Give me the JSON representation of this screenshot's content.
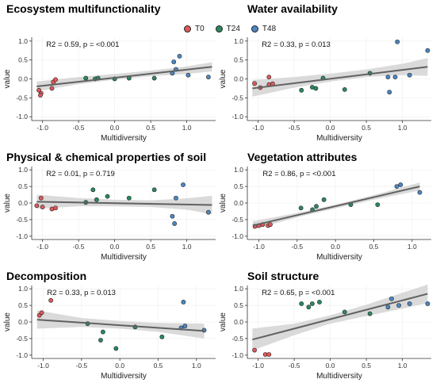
{
  "legend": {
    "items": [
      {
        "label": "T0",
        "color": "#E0595A"
      },
      {
        "label": "T24",
        "color": "#2A8A5E"
      },
      {
        "label": "T48",
        "color": "#4C87C4"
      }
    ]
  },
  "chart_data": [
    {
      "type": "scatter",
      "title": "Ecosystem multifunctionality",
      "xlabel": "Multidiversity",
      "ylabel": "value",
      "stat": "R2 = 0.59, p = <0.001",
      "xlim": [
        -1.15,
        1.4
      ],
      "ylim": [
        -1.1,
        1.1
      ],
      "xticks": [
        -1.0,
        -0.5,
        0.0,
        0.5,
        1.0
      ],
      "yticks": [
        -1.0,
        -0.5,
        0.0,
        0.5,
        1.0
      ],
      "fit": {
        "x": [
          -1.08,
          1.35
        ],
        "y": [
          -0.2,
          0.32
        ]
      },
      "band": {
        "x": [
          -1.08,
          -0.5,
          0.0,
          0.5,
          1.0,
          1.35
        ],
        "upper": [
          -0.07,
          0.05,
          0.13,
          0.22,
          0.33,
          0.44
        ],
        "lower": [
          -0.33,
          -0.14,
          -0.02,
          0.07,
          0.13,
          0.2
        ]
      },
      "points": [
        {
          "x": -1.05,
          "y": -0.3,
          "g": "T0"
        },
        {
          "x": -1.02,
          "y": -0.38,
          "g": "T0"
        },
        {
          "x": -1.03,
          "y": -0.43,
          "g": "T0"
        },
        {
          "x": -0.85,
          "y": -0.08,
          "g": "T0"
        },
        {
          "x": -0.82,
          "y": -0.02,
          "g": "T0"
        },
        {
          "x": -0.87,
          "y": -0.25,
          "g": "T0"
        },
        {
          "x": -0.4,
          "y": 0.02,
          "g": "T24"
        },
        {
          "x": -0.27,
          "y": 0.0,
          "g": "T24"
        },
        {
          "x": -0.23,
          "y": 0.02,
          "g": "T24"
        },
        {
          "x": 0.0,
          "y": 0.0,
          "g": "T24"
        },
        {
          "x": 0.2,
          "y": 0.02,
          "g": "T24"
        },
        {
          "x": 0.55,
          "y": 0.02,
          "g": "T24"
        },
        {
          "x": 0.8,
          "y": 0.15,
          "g": "T48"
        },
        {
          "x": 0.82,
          "y": 0.45,
          "g": "T48"
        },
        {
          "x": 0.9,
          "y": 0.6,
          "g": "T48"
        },
        {
          "x": 1.02,
          "y": 0.1,
          "g": "T48"
        },
        {
          "x": 1.3,
          "y": 0.05,
          "g": "T48"
        },
        {
          "x": 0.85,
          "y": 0.25,
          "g": "T48"
        }
      ]
    },
    {
      "type": "scatter",
      "title": "Water availability",
      "xlabel": "Multidiversity",
      "ylabel": "value",
      "stat": "R2 = 0.33, p = 0.013",
      "xlim": [
        -1.15,
        1.4
      ],
      "ylim": [
        -1.1,
        1.1
      ],
      "xticks": [
        -1.0,
        -0.5,
        0.0,
        0.5,
        1.0
      ],
      "yticks": [
        -1.0,
        -0.5,
        0.0,
        0.5,
        1.0
      ],
      "fit": {
        "x": [
          -1.08,
          1.35
        ],
        "y": [
          -0.25,
          0.32
        ]
      },
      "band": {
        "x": [
          -1.08,
          -0.5,
          0.0,
          0.5,
          1.0,
          1.35
        ],
        "upper": [
          -0.03,
          0.05,
          0.14,
          0.25,
          0.4,
          0.55
        ],
        "lower": [
          -0.47,
          -0.23,
          -0.07,
          0.05,
          0.1,
          0.08
        ]
      },
      "points": [
        {
          "x": -1.05,
          "y": -0.12,
          "g": "T0"
        },
        {
          "x": -0.97,
          "y": -0.23,
          "g": "T0"
        },
        {
          "x": -0.85,
          "y": 0.05,
          "g": "T0"
        },
        {
          "x": -0.85,
          "y": -0.15,
          "g": "T0"
        },
        {
          "x": -0.8,
          "y": -0.13,
          "g": "T0"
        },
        {
          "x": -0.4,
          "y": -0.3,
          "g": "T24"
        },
        {
          "x": -0.25,
          "y": -0.22,
          "g": "T24"
        },
        {
          "x": -0.2,
          "y": -0.25,
          "g": "T24"
        },
        {
          "x": -0.1,
          "y": 0.02,
          "g": "T24"
        },
        {
          "x": 0.2,
          "y": -0.28,
          "g": "T24"
        },
        {
          "x": 0.55,
          "y": 0.15,
          "g": "T24"
        },
        {
          "x": 0.8,
          "y": 0.05,
          "g": "T48"
        },
        {
          "x": 0.82,
          "y": -0.35,
          "g": "T48"
        },
        {
          "x": 0.93,
          "y": 0.98,
          "g": "T48"
        },
        {
          "x": 0.9,
          "y": 0.05,
          "g": "T48"
        },
        {
          "x": 1.1,
          "y": 0.1,
          "g": "T48"
        },
        {
          "x": 1.35,
          "y": 0.75,
          "g": "T48"
        }
      ]
    },
    {
      "type": "scatter",
      "title": "Physical & chemical properties of soil",
      "xlabel": "Multidiversity",
      "ylabel": "value",
      "stat": "R2 = 0.01, p = 0.719",
      "xlim": [
        -1.15,
        1.4
      ],
      "ylim": [
        -1.1,
        1.1
      ],
      "xticks": [
        -1.0,
        -0.5,
        0.0,
        0.5,
        1.0
      ],
      "yticks": [
        -1.0,
        -0.5,
        0.0,
        0.5,
        1.0
      ],
      "fit": {
        "x": [
          -1.08,
          1.35
        ],
        "y": [
          0.04,
          -0.06
        ]
      },
      "band": {
        "x": [
          -1.08,
          -0.5,
          0.0,
          0.5,
          1.0,
          1.35
        ],
        "upper": [
          0.25,
          0.15,
          0.1,
          0.08,
          0.14,
          0.22
        ],
        "lower": [
          -0.17,
          -0.1,
          -0.1,
          -0.12,
          -0.2,
          -0.34
        ]
      },
      "points": [
        {
          "x": -1.08,
          "y": -0.08,
          "g": "T0"
        },
        {
          "x": -1.02,
          "y": 0.15,
          "g": "T0"
        },
        {
          "x": -1.0,
          "y": -0.12,
          "g": "T0"
        },
        {
          "x": -0.87,
          "y": -0.18,
          "g": "T0"
        },
        {
          "x": -0.82,
          "y": -0.15,
          "g": "T0"
        },
        {
          "x": -0.4,
          "y": 0.02,
          "g": "T24"
        },
        {
          "x": -0.3,
          "y": 0.4,
          "g": "T24"
        },
        {
          "x": -0.25,
          "y": 0.1,
          "g": "T24"
        },
        {
          "x": -0.1,
          "y": 0.2,
          "g": "T24"
        },
        {
          "x": 0.2,
          "y": 0.15,
          "g": "T24"
        },
        {
          "x": 0.55,
          "y": 0.4,
          "g": "T24"
        },
        {
          "x": 0.8,
          "y": -0.4,
          "g": "T48"
        },
        {
          "x": 0.83,
          "y": -0.62,
          "g": "T48"
        },
        {
          "x": 0.85,
          "y": 0.15,
          "g": "T48"
        },
        {
          "x": 0.95,
          "y": 0.55,
          "g": "T48"
        },
        {
          "x": 1.3,
          "y": -0.28,
          "g": "T48"
        }
      ]
    },
    {
      "type": "scatter",
      "title": "Vegetation attributes",
      "xlabel": "Multidiversity",
      "ylabel": "value",
      "stat": "R2 = 0.86, p = <0.001",
      "xlim": [
        -1.15,
        1.25
      ],
      "ylim": [
        -1.1,
        1.1
      ],
      "xticks": [
        -1.0,
        -0.5,
        0.0,
        0.5,
        1.0
      ],
      "yticks": [
        -1.0,
        -0.5,
        0.0,
        0.5,
        1.0
      ],
      "fit": {
        "x": [
          -1.08,
          1.1
        ],
        "y": [
          -0.68,
          0.5
        ]
      },
      "band": {
        "x": [
          -1.08,
          -0.5,
          0.0,
          0.5,
          1.1
        ],
        "upper": [
          -0.55,
          -0.3,
          -0.05,
          0.24,
          0.62
        ],
        "lower": [
          -0.8,
          -0.43,
          -0.16,
          0.1,
          0.38
        ]
      },
      "points": [
        {
          "x": -1.05,
          "y": -0.7,
          "g": "T0"
        },
        {
          "x": -1.0,
          "y": -0.68,
          "g": "T0"
        },
        {
          "x": -0.95,
          "y": -0.65,
          "g": "T0"
        },
        {
          "x": -0.88,
          "y": -0.68,
          "g": "T0"
        },
        {
          "x": -0.85,
          "y": -0.65,
          "g": "T0"
        },
        {
          "x": -0.45,
          "y": -0.15,
          "g": "T24"
        },
        {
          "x": -0.3,
          "y": -0.2,
          "g": "T24"
        },
        {
          "x": -0.25,
          "y": -0.1,
          "g": "T24"
        },
        {
          "x": -0.15,
          "y": 0.1,
          "g": "T24"
        },
        {
          "x": 0.2,
          "y": -0.05,
          "g": "T24"
        },
        {
          "x": 0.55,
          "y": -0.05,
          "g": "T24"
        },
        {
          "x": 0.8,
          "y": 0.5,
          "g": "T48"
        },
        {
          "x": 0.85,
          "y": 0.55,
          "g": "T48"
        },
        {
          "x": 1.1,
          "y": 0.32,
          "g": "T48"
        }
      ]
    },
    {
      "type": "scatter",
      "title": "Decomposition",
      "xlabel": "Multidiversity",
      "ylabel": "value",
      "stat": "R2 = 0.33, p = 0.013",
      "xlim": [
        -1.15,
        1.25
      ],
      "ylim": [
        -1.1,
        1.1
      ],
      "xticks": [
        -1.0,
        -0.5,
        0.0,
        0.5,
        1.0
      ],
      "yticks": [
        -1.0,
        -0.5,
        0.0,
        0.5,
        1.0
      ],
      "fit": {
        "x": [
          -1.08,
          1.1
        ],
        "y": [
          0.07,
          -0.27
        ]
      },
      "band": {
        "x": [
          -1.08,
          -0.5,
          0.0,
          0.5,
          1.1
        ],
        "upper": [
          0.35,
          0.12,
          0.03,
          -0.03,
          -0.05
        ],
        "lower": [
          -0.2,
          -0.15,
          -0.2,
          -0.3,
          -0.5
        ]
      },
      "points": [
        {
          "x": -1.05,
          "y": 0.2,
          "g": "T0"
        },
        {
          "x": -1.02,
          "y": 0.28,
          "g": "T0"
        },
        {
          "x": -0.9,
          "y": 0.65,
          "g": "T0"
        },
        {
          "x": -0.42,
          "y": -0.05,
          "g": "T24"
        },
        {
          "x": -0.25,
          "y": -0.55,
          "g": "T24"
        },
        {
          "x": -0.22,
          "y": -0.3,
          "g": "T24"
        },
        {
          "x": -0.05,
          "y": -0.8,
          "g": "T24"
        },
        {
          "x": 0.2,
          "y": -0.15,
          "g": "T24"
        },
        {
          "x": 0.55,
          "y": -0.45,
          "g": "T24"
        },
        {
          "x": 0.8,
          "y": -0.18,
          "g": "T48"
        },
        {
          "x": 0.85,
          "y": -0.12,
          "g": "T48"
        },
        {
          "x": 0.83,
          "y": 0.6,
          "g": "T48"
        },
        {
          "x": 1.1,
          "y": -0.25,
          "g": "T48"
        }
      ]
    },
    {
      "type": "scatter",
      "title": "Soil structure",
      "xlabel": "Multidiversity",
      "ylabel": "value",
      "stat": "R2 = 0.65, p = <0.001",
      "xlim": [
        -1.15,
        1.4
      ],
      "ylim": [
        -1.1,
        1.1
      ],
      "xticks": [
        -1.0,
        -0.5,
        0.0,
        0.5,
        1.0
      ],
      "yticks": [
        -1.0,
        -0.5,
        0.0,
        0.5,
        1.0
      ],
      "fit": {
        "x": [
          -1.08,
          1.35
        ],
        "y": [
          -0.53,
          0.85
        ]
      },
      "band": {
        "x": [
          -1.08,
          -0.5,
          0.0,
          0.5,
          1.0,
          1.35
        ],
        "upper": [
          -0.2,
          -0.05,
          0.2,
          0.52,
          0.88,
          1.13
        ],
        "lower": [
          -0.86,
          -0.4,
          -0.05,
          0.18,
          0.4,
          0.57
        ]
      },
      "points": [
        {
          "x": -1.05,
          "y": -0.85,
          "g": "T0"
        },
        {
          "x": -0.9,
          "y": -0.98,
          "g": "T0"
        },
        {
          "x": -0.85,
          "y": -0.98,
          "g": "T0"
        },
        {
          "x": -0.4,
          "y": 0.55,
          "g": "T24"
        },
        {
          "x": -0.3,
          "y": 0.45,
          "g": "T24"
        },
        {
          "x": -0.25,
          "y": 0.55,
          "g": "T24"
        },
        {
          "x": -0.15,
          "y": 0.6,
          "g": "T24"
        },
        {
          "x": 0.2,
          "y": 0.3,
          "g": "T24"
        },
        {
          "x": 0.55,
          "y": 0.25,
          "g": "T24"
        },
        {
          "x": 0.8,
          "y": 0.45,
          "g": "T48"
        },
        {
          "x": 0.85,
          "y": 0.7,
          "g": "T48"
        },
        {
          "x": 0.95,
          "y": 0.5,
          "g": "T48"
        },
        {
          "x": 1.1,
          "y": 0.55,
          "g": "T48"
        },
        {
          "x": 1.35,
          "y": 0.55,
          "g": "T48"
        }
      ]
    }
  ]
}
